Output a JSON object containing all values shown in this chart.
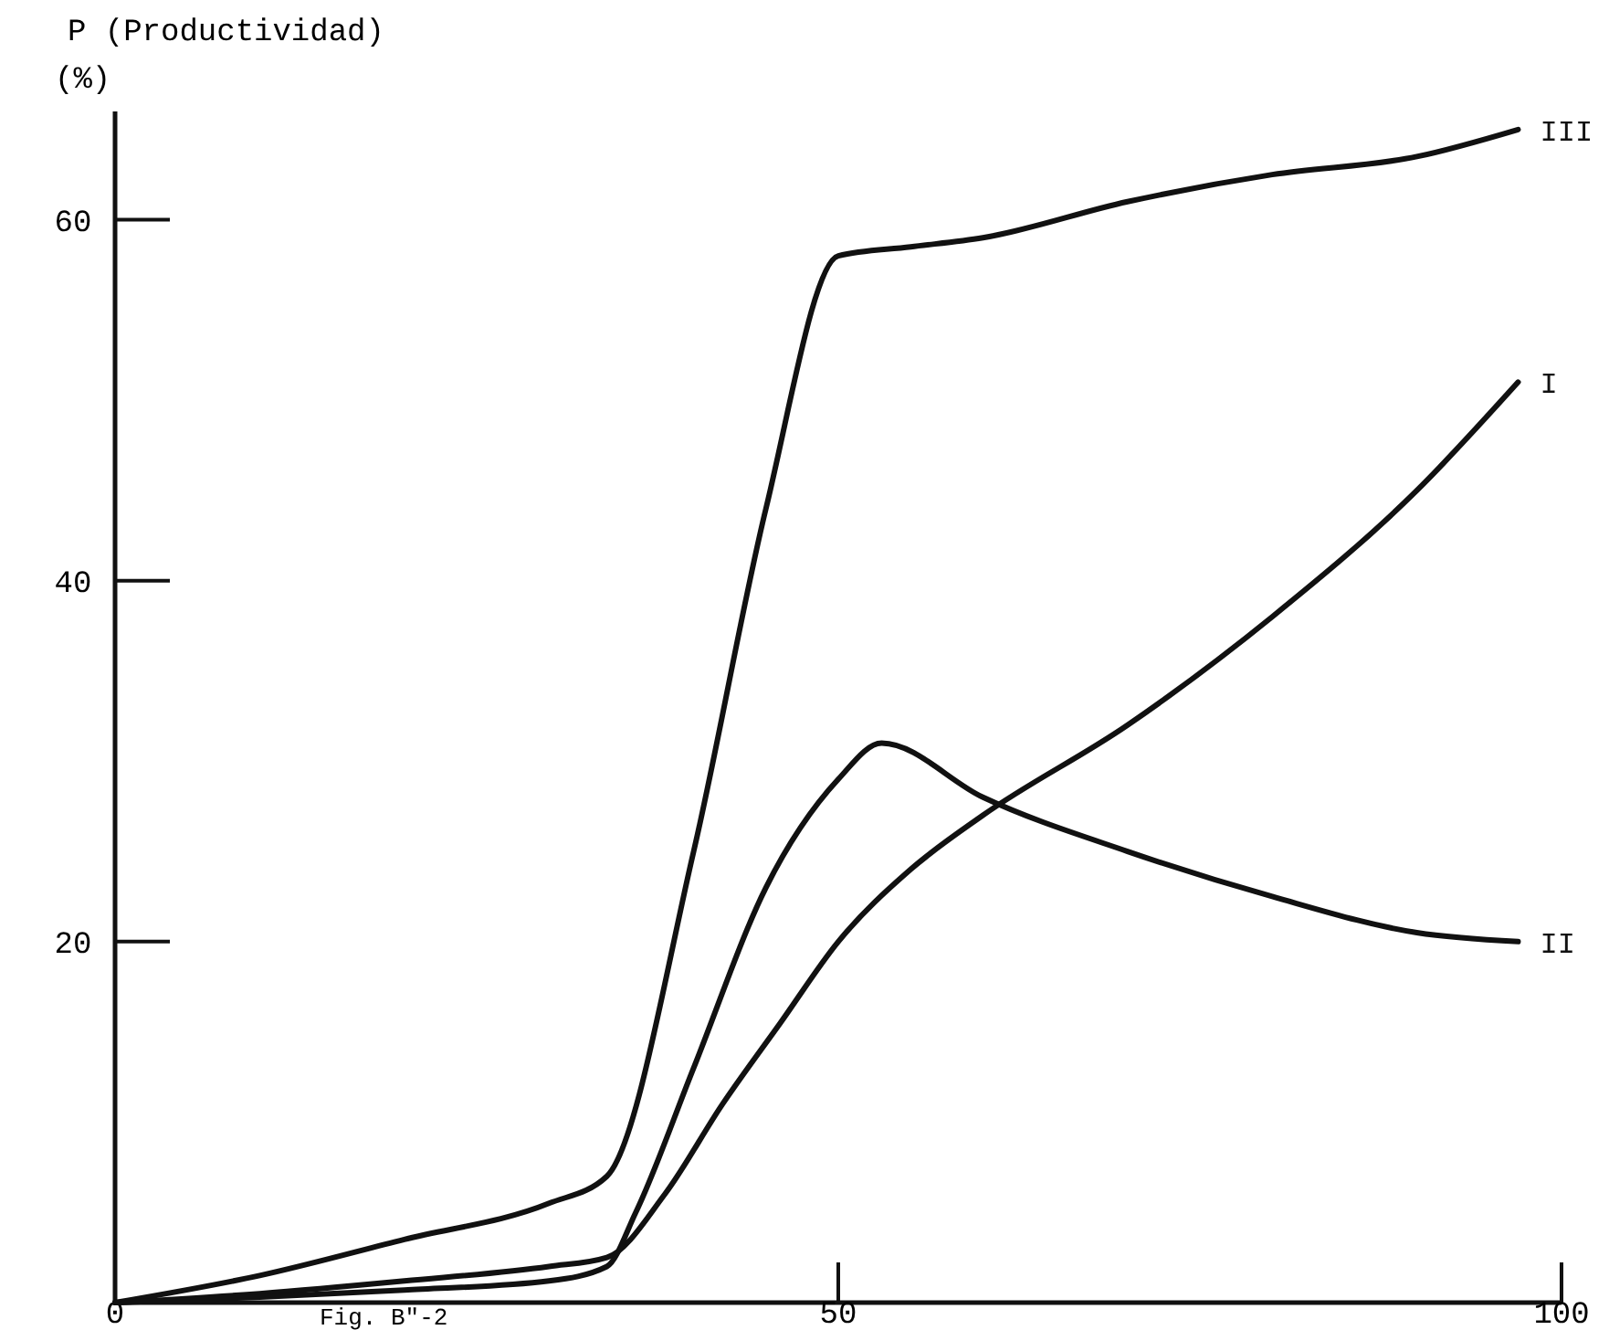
{
  "chart_data": {
    "type": "line",
    "ylabel": "P (Productividad)\n(%)",
    "annotations": [
      "Fig. B\"-2"
    ],
    "xlim": [
      0,
      100
    ],
    "ylim": [
      0,
      66
    ],
    "xticks": [
      0,
      50,
      100
    ],
    "yticks": [
      {
        "value": 0,
        "label": null
      },
      20,
      40,
      60
    ],
    "grid": false,
    "marker": "none",
    "line_style": "solid",
    "series": [
      {
        "name": "III",
        "color": "#111111",
        "x": [
          0,
          10,
          20,
          30,
          34,
          40,
          45,
          50,
          55,
          60,
          70,
          80,
          90,
          97
        ],
        "values": [
          0,
          1.5,
          3.5,
          5.5,
          7,
          25,
          44,
          58,
          58.5,
          59,
          61,
          62.5,
          63.5,
          65
        ]
      },
      {
        "name": "I",
        "color": "#111111",
        "x": [
          0,
          10,
          20,
          30,
          34,
          38,
          42,
          46,
          50,
          55,
          60,
          70,
          80,
          90,
          97
        ],
        "values": [
          0,
          0.5,
          1.2,
          2,
          2.5,
          6,
          11,
          15.5,
          20,
          24,
          27,
          32,
          38,
          45,
          51
        ]
      },
      {
        "name": "II",
        "color": "#111111",
        "x": [
          0,
          10,
          20,
          30,
          34,
          36,
          40,
          45,
          50,
          53,
          60,
          70,
          80,
          90,
          97
        ],
        "values": [
          0,
          0.3,
          0.7,
          1.2,
          2,
          5,
          13,
          23,
          29,
          31,
          28,
          25,
          22.5,
          20.5,
          20
        ]
      }
    ]
  }
}
